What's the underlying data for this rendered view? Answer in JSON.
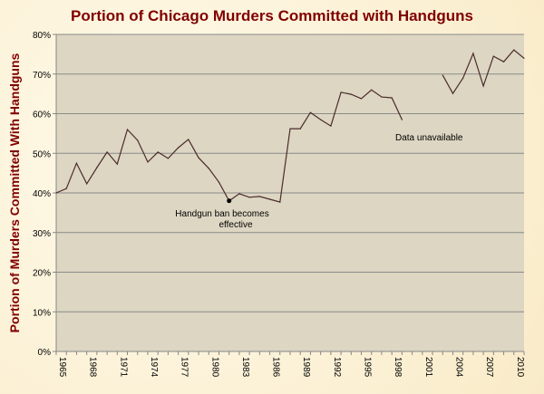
{
  "chart_data": {
    "type": "line",
    "title": "Portion of Chicago Murders Committed with Handguns",
    "xlabel": "",
    "ylabel": "Portion of Murders Committed With Handguns",
    "xlim": [
      1965,
      2011
    ],
    "ylim": [
      0,
      80
    ],
    "grid": true,
    "x_ticks": [
      "1965",
      "1968",
      "1971",
      "1974",
      "1977",
      "1980",
      "1983",
      "1986",
      "1989",
      "1992",
      "1995",
      "1998",
      "2001",
      "2004",
      "2007",
      "2010"
    ],
    "y_ticks": [
      "0%",
      "10%",
      "20%",
      "30%",
      "40%",
      "50%",
      "60%",
      "70%",
      "80%"
    ],
    "series": [
      {
        "x": [
          1965,
          1966,
          1967,
          1968,
          1969,
          1970,
          1971,
          1972,
          1973,
          1974,
          1975,
          1976,
          1977,
          1978,
          1979,
          1980,
          1981,
          1982,
          1983,
          1984,
          1985,
          1986,
          1987,
          1988,
          1989,
          1990,
          1991,
          1992,
          1993,
          1994,
          1995,
          1996,
          1997,
          1998,
          1999,
          2000,
          2001,
          2002,
          2003,
          2004,
          2005,
          2006,
          2007,
          2008,
          2009,
          2010,
          2011
        ],
        "values": [
          40,
          41.1,
          47.5,
          42.3,
          46.4,
          50.3,
          47.3,
          56,
          53.3,
          47.8,
          50.3,
          48.7,
          51.4,
          53.5,
          48.9,
          46.2,
          42.7,
          38,
          39.8,
          38.9,
          39.1,
          38.4,
          37.7,
          56.2,
          56.2,
          60.3,
          58.5,
          56.9,
          65.4,
          64.9,
          63.8,
          66,
          64.2,
          64,
          58.5,
          null,
          null,
          null,
          69.7,
          65.1,
          69,
          75.2,
          67,
          74.5,
          73.1,
          76.1,
          74
        ]
      }
    ],
    "annotations": [
      {
        "text": "Handgun ban becomes effective",
        "line1": "Handgun ban becomes",
        "line2": "effective",
        "x": 1982,
        "y": 38
      },
      {
        "text": "Data unavailable",
        "x": 2001,
        "y": 54
      }
    ],
    "colors": {
      "line": "#4a2c2c",
      "plot_bg": "#ddd6c2",
      "title": "#800000",
      "grid": "#8a8a8a"
    }
  }
}
